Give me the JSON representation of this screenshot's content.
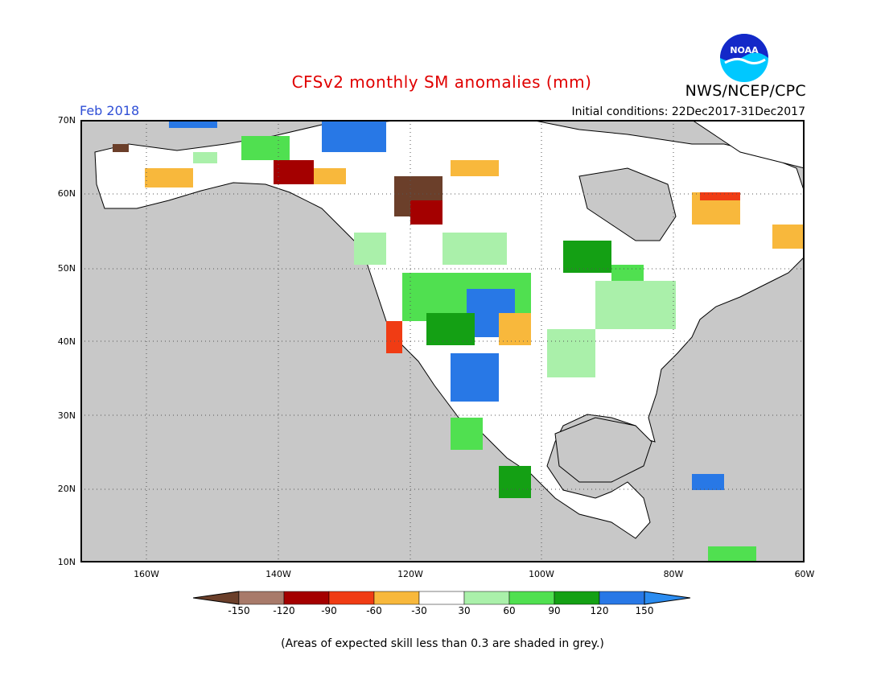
{
  "title": "CFSv2 monthly SM anomalies (mm)",
  "organization": "NWS/NCEP/CPC",
  "logo_text": "NOAA",
  "valid_month": "Feb 2018",
  "initial_conditions": "Initial conditions: 22Dec2017-31Dec2017",
  "footer_note": "(Areas of expected skill less than 0.3 are shaded in grey.)",
  "lat_labels": [
    "70N",
    "60N",
    "50N",
    "40N",
    "30N",
    "20N",
    "10N"
  ],
  "lon_labels": [
    "160W",
    "140W",
    "120W",
    "100W",
    "80W",
    "60W"
  ],
  "colorbar": {
    "tick_labels": [
      "-150",
      "-120",
      "-90",
      "-60",
      "-30",
      "30",
      "60",
      "90",
      "120",
      "150"
    ],
    "colors": [
      "#6b3f2a",
      "#a87a6a",
      "#a40000",
      "#f03c14",
      "#f8b83c",
      "#ffffff",
      "#aaf0aa",
      "#50e050",
      "#14a014",
      "#2878e6",
      "#2b8cf0"
    ]
  },
  "colors": {
    "ocean_low_skill": "#c8c8c8",
    "land_near_zero": "#ffffff",
    "title_red": "#e00000",
    "month_blue": "#2f4fd6"
  }
}
